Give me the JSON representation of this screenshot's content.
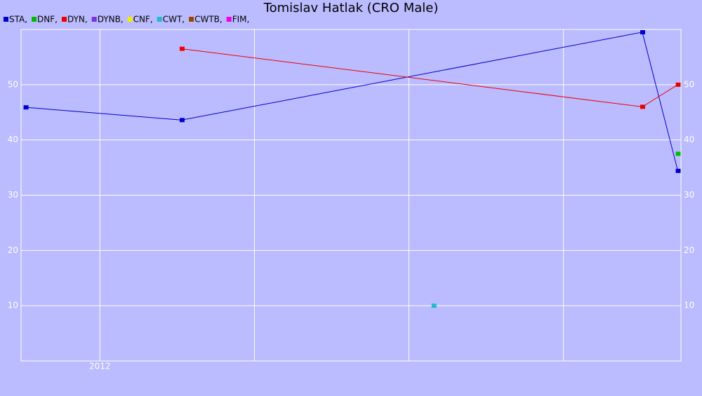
{
  "chart_data": {
    "type": "line",
    "title": "Tomislav Hatlak (CRO Male)",
    "series": [
      {
        "name": "STA,",
        "color": "#0000cc",
        "x": [
          2011.52,
          2012.53,
          2015.51,
          2015.74
        ],
        "values": [
          45.9,
          43.6,
          59.5,
          34.4
        ]
      },
      {
        "name": "DNF,",
        "color": "#00bb00",
        "x": [
          2015.74
        ],
        "values": [
          37.5
        ]
      },
      {
        "name": "DYN,",
        "color": "#ee0000",
        "x": [
          2012.53,
          2015.51,
          2015.74
        ],
        "values": [
          56.5,
          46.0,
          50.0
        ]
      },
      {
        "name": "DYNB,",
        "color": "#7733dd",
        "x": [],
        "values": []
      },
      {
        "name": "CNF,",
        "color": "#eeee00",
        "x": [],
        "values": []
      },
      {
        "name": "CWT,",
        "color": "#22bbcc",
        "x": [
          2014.16
        ],
        "values": [
          10
        ]
      },
      {
        "name": "CWTB,",
        "color": "#994400",
        "x": [],
        "values": []
      },
      {
        "name": "FIM,",
        "color": "#ee00ee",
        "x": [],
        "values": []
      }
    ],
    "xlim": [
      2011.49,
      2015.76
    ],
    "xticks": [
      {
        "value": 2012,
        "label": "2012"
      },
      {
        "value": 2013,
        "label": null
      },
      {
        "value": 2014,
        "label": null
      },
      {
        "value": 2015,
        "label": null
      }
    ],
    "ylim": [
      0,
      60
    ],
    "yticks": [
      10,
      20,
      30,
      40,
      50
    ],
    "grid": true
  }
}
